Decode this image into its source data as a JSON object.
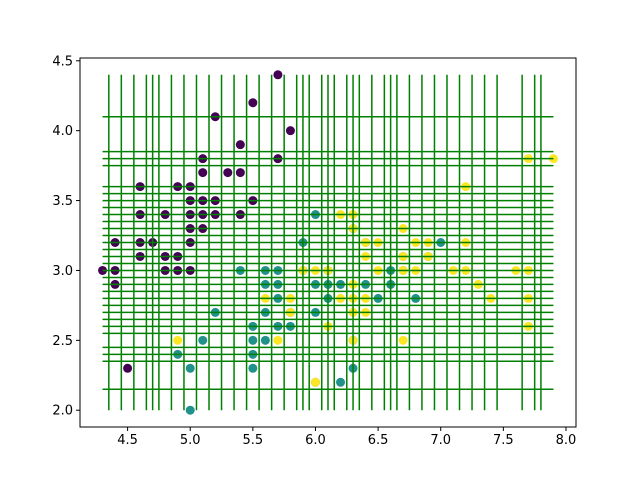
{
  "chart_data": {
    "type": "scatter",
    "title": "",
    "xlabel": "",
    "ylabel": "",
    "xlim": [
      4.12,
      8.08
    ],
    "ylim": [
      1.88,
      4.52
    ],
    "x_ticks": [
      4.5,
      5.0,
      5.5,
      6.0,
      6.5,
      7.0,
      7.5,
      8.0
    ],
    "x_tick_labels": [
      "4.5",
      "5.0",
      "5.5",
      "6.0",
      "6.5",
      "7.0",
      "7.5",
      "8.0"
    ],
    "y_ticks": [
      2.0,
      2.5,
      3.0,
      3.5,
      4.0,
      4.5
    ],
    "y_tick_labels": [
      "2.0",
      "2.5",
      "3.0",
      "3.5",
      "4.0",
      "4.5"
    ],
    "grid": false,
    "legend": "none",
    "colors": {
      "class_0": "#440154",
      "class_1": "#21918c",
      "class_2": "#fde725",
      "lines": "#008000",
      "axes": "#000000"
    },
    "series": [
      {
        "class": 0,
        "color": "#440154",
        "points": [
          [
            4.3,
            3.0
          ],
          [
            4.4,
            2.9
          ],
          [
            4.4,
            3.0
          ],
          [
            4.4,
            3.2
          ],
          [
            4.5,
            2.3
          ],
          [
            4.6,
            3.1
          ],
          [
            4.6,
            3.2
          ],
          [
            4.6,
            3.4
          ],
          [
            4.6,
            3.6
          ],
          [
            4.7,
            3.2
          ],
          [
            4.8,
            3.0
          ],
          [
            4.8,
            3.1
          ],
          [
            4.8,
            3.4
          ],
          [
            4.9,
            3.0
          ],
          [
            4.9,
            3.1
          ],
          [
            4.9,
            3.6
          ],
          [
            5.0,
            3.0
          ],
          [
            5.0,
            3.2
          ],
          [
            5.0,
            3.3
          ],
          [
            5.0,
            3.4
          ],
          [
            5.0,
            3.5
          ],
          [
            5.0,
            3.6
          ],
          [
            5.1,
            3.3
          ],
          [
            5.1,
            3.4
          ],
          [
            5.1,
            3.5
          ],
          [
            5.1,
            3.7
          ],
          [
            5.1,
            3.8
          ],
          [
            5.2,
            3.4
          ],
          [
            5.2,
            3.5
          ],
          [
            5.2,
            4.1
          ],
          [
            5.3,
            3.7
          ],
          [
            5.4,
            3.4
          ],
          [
            5.4,
            3.7
          ],
          [
            5.4,
            3.9
          ],
          [
            5.5,
            3.5
          ],
          [
            5.5,
            4.2
          ],
          [
            5.7,
            3.8
          ],
          [
            5.7,
            4.4
          ],
          [
            5.8,
            4.0
          ]
        ]
      },
      {
        "class": 1,
        "color": "#21918c",
        "points": [
          [
            4.9,
            2.4
          ],
          [
            5.0,
            2.0
          ],
          [
            5.0,
            2.3
          ],
          [
            5.1,
            2.5
          ],
          [
            5.2,
            2.7
          ],
          [
            5.4,
            3.0
          ],
          [
            5.5,
            2.3
          ],
          [
            5.5,
            2.4
          ],
          [
            5.5,
            2.5
          ],
          [
            5.5,
            2.6
          ],
          [
            5.6,
            2.5
          ],
          [
            5.6,
            2.7
          ],
          [
            5.6,
            2.9
          ],
          [
            5.6,
            3.0
          ],
          [
            5.7,
            2.6
          ],
          [
            5.7,
            2.8
          ],
          [
            5.7,
            2.9
          ],
          [
            5.7,
            3.0
          ],
          [
            5.8,
            2.6
          ],
          [
            5.8,
            2.7
          ],
          [
            5.9,
            3.0
          ],
          [
            5.9,
            3.2
          ],
          [
            6.0,
            2.2
          ],
          [
            6.0,
            2.7
          ],
          [
            6.0,
            2.9
          ],
          [
            6.0,
            3.4
          ],
          [
            6.1,
            2.8
          ],
          [
            6.1,
            2.9
          ],
          [
            6.1,
            3.0
          ],
          [
            6.2,
            2.2
          ],
          [
            6.2,
            2.9
          ],
          [
            6.3,
            2.3
          ],
          [
            6.3,
            2.5
          ],
          [
            6.3,
            3.3
          ],
          [
            6.4,
            2.9
          ],
          [
            6.4,
            3.2
          ],
          [
            6.5,
            2.8
          ],
          [
            6.6,
            2.9
          ],
          [
            6.6,
            3.0
          ],
          [
            6.7,
            3.0
          ],
          [
            6.7,
            3.1
          ],
          [
            6.8,
            2.8
          ],
          [
            6.9,
            3.1
          ],
          [
            7.0,
            3.2
          ]
        ]
      },
      {
        "class": 2,
        "color": "#fde725",
        "points": [
          [
            4.9,
            2.5
          ],
          [
            5.6,
            2.8
          ],
          [
            5.7,
            2.5
          ],
          [
            5.8,
            2.7
          ],
          [
            5.8,
            2.8
          ],
          [
            5.9,
            3.0
          ],
          [
            6.0,
            2.2
          ],
          [
            6.0,
            3.0
          ],
          [
            6.1,
            2.6
          ],
          [
            6.1,
            3.0
          ],
          [
            6.2,
            2.8
          ],
          [
            6.2,
            3.4
          ],
          [
            6.3,
            2.5
          ],
          [
            6.3,
            2.7
          ],
          [
            6.3,
            2.8
          ],
          [
            6.3,
            2.9
          ],
          [
            6.3,
            3.3
          ],
          [
            6.3,
            3.4
          ],
          [
            6.4,
            2.7
          ],
          [
            6.4,
            2.8
          ],
          [
            6.4,
            3.1
          ],
          [
            6.4,
            3.2
          ],
          [
            6.5,
            3.0
          ],
          [
            6.5,
            3.2
          ],
          [
            6.7,
            2.5
          ],
          [
            6.7,
            3.0
          ],
          [
            6.7,
            3.1
          ],
          [
            6.7,
            3.3
          ],
          [
            6.8,
            3.0
          ],
          [
            6.8,
            3.2
          ],
          [
            6.9,
            3.1
          ],
          [
            6.9,
            3.2
          ],
          [
            7.1,
            3.0
          ],
          [
            7.2,
            3.0
          ],
          [
            7.2,
            3.2
          ],
          [
            7.2,
            3.6
          ],
          [
            7.3,
            2.9
          ],
          [
            7.4,
            2.8
          ],
          [
            7.6,
            3.0
          ],
          [
            7.7,
            2.6
          ],
          [
            7.7,
            2.8
          ],
          [
            7.7,
            3.0
          ],
          [
            7.7,
            3.8
          ],
          [
            7.9,
            3.8
          ]
        ]
      }
    ],
    "vertical_lines": {
      "x": [
        4.35,
        4.45,
        4.55,
        4.65,
        4.7,
        4.75,
        4.85,
        4.95,
        5.05,
        5.15,
        5.25,
        5.35,
        5.45,
        5.55,
        5.65,
        5.75,
        5.85,
        5.9,
        5.95,
        6.05,
        6.1,
        6.15,
        6.25,
        6.3,
        6.35,
        6.45,
        6.55,
        6.6,
        6.65,
        6.75,
        6.85,
        6.95,
        7.05,
        7.15,
        7.25,
        7.35,
        7.45,
        7.65,
        7.75,
        7.8
      ],
      "y_range": [
        2.0,
        4.4
      ]
    },
    "horizontal_lines": {
      "y": [
        2.15,
        2.35,
        2.4,
        2.45,
        2.55,
        2.6,
        2.65,
        2.7,
        2.75,
        2.8,
        2.85,
        2.9,
        2.95,
        3.0,
        3.05,
        3.1,
        3.15,
        3.2,
        3.25,
        3.3,
        3.35,
        3.4,
        3.45,
        3.5,
        3.55,
        3.6,
        3.75,
        3.8,
        3.85,
        4.1
      ],
      "x_range": [
        4.3,
        7.9
      ]
    }
  }
}
